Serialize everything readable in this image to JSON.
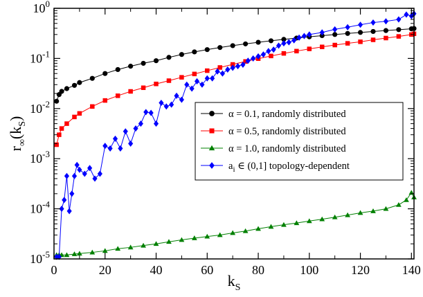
{
  "chart_data": {
    "type": "line",
    "xlabel": {
      "main": "k",
      "sub": "S"
    },
    "ylabel": {
      "main": "r",
      "sub1": "∞",
      "open": "(k",
      "sub2": "S",
      "close": ")"
    },
    "xlim": [
      0,
      141
    ],
    "ylim": [
      1e-05,
      1
    ],
    "yscale": "log",
    "grid": false,
    "legend_position": "center-right",
    "x_ticks": [
      "0",
      "20",
      "40",
      "60",
      "80",
      "100",
      "120",
      "140"
    ],
    "y_ticks": [
      {
        "base": "10",
        "exp": "-5"
      },
      {
        "base": "10",
        "exp": "-4"
      },
      {
        "base": "10",
        "exp": "-3"
      },
      {
        "base": "10",
        "exp": "-2"
      },
      {
        "base": "10",
        "exp": "-1"
      },
      {
        "base": "10",
        "exp": "0"
      }
    ],
    "series": [
      {
        "name": "α = 0.1, randomly distributed",
        "color": "#000000",
        "marker": "circle",
        "x": [
          1,
          2,
          3,
          5,
          8,
          10,
          15,
          20,
          25,
          30,
          35,
          40,
          45,
          50,
          55,
          60,
          65,
          70,
          75,
          80,
          85,
          90,
          95,
          100,
          105,
          110,
          115,
          120,
          125,
          130,
          135,
          140,
          141
        ],
        "y": [
          0.014,
          0.019,
          0.022,
          0.025,
          0.029,
          0.033,
          0.04,
          0.05,
          0.06,
          0.07,
          0.08,
          0.09,
          0.105,
          0.12,
          0.135,
          0.15,
          0.165,
          0.18,
          0.195,
          0.21,
          0.225,
          0.24,
          0.255,
          0.27,
          0.285,
          0.3,
          0.315,
          0.33,
          0.345,
          0.36,
          0.375,
          0.39,
          0.395
        ]
      },
      {
        "name": "α = 0.5, randomly distributed",
        "color": "#ff0000",
        "marker": "square",
        "x": [
          1,
          2,
          3,
          5,
          8,
          10,
          15,
          20,
          25,
          30,
          35,
          40,
          45,
          50,
          55,
          60,
          65,
          70,
          75,
          80,
          85,
          90,
          95,
          100,
          105,
          110,
          115,
          120,
          125,
          130,
          135,
          140,
          141
        ],
        "y": [
          0.0019,
          0.003,
          0.004,
          0.005,
          0.0068,
          0.008,
          0.011,
          0.0145,
          0.018,
          0.022,
          0.026,
          0.031,
          0.036,
          0.042,
          0.049,
          0.057,
          0.066,
          0.076,
          0.087,
          0.099,
          0.112,
          0.126,
          0.14,
          0.155,
          0.17,
          0.185,
          0.2,
          0.215,
          0.235,
          0.255,
          0.275,
          0.3,
          0.31
        ]
      },
      {
        "name": "α = 1.0, randomly distributed",
        "color": "#008000",
        "marker": "triangle",
        "x": [
          1,
          2,
          3,
          5,
          8,
          10,
          15,
          20,
          25,
          30,
          35,
          40,
          45,
          50,
          55,
          60,
          65,
          70,
          75,
          80,
          85,
          90,
          95,
          100,
          105,
          110,
          115,
          120,
          125,
          130,
          135,
          138,
          140,
          141
        ],
        "y": [
          1.2e-05,
          1.2e-05,
          1.2e-05,
          1.2e-05,
          1.25e-05,
          1.28e-05,
          1.35e-05,
          1.45e-05,
          1.6e-05,
          1.7e-05,
          1.85e-05,
          2e-05,
          2.2e-05,
          2.4e-05,
          2.6e-05,
          2.8e-05,
          3e-05,
          3.3e-05,
          3.6e-05,
          4e-05,
          4.4e-05,
          4.8e-05,
          5.2e-05,
          5.7e-05,
          6.2e-05,
          6.8e-05,
          7.5e-05,
          8.3e-05,
          9e-05,
          0.0001,
          0.00012,
          0.00015,
          0.00021,
          0.00017
        ]
      },
      {
        "name": "a",
        "name_sub": "i",
        "name_rest": "∈ (0,1] topology-dependent",
        "color": "#0000ff",
        "marker": "diamond",
        "x": [
          1,
          2,
          3,
          4,
          5,
          6,
          7,
          8,
          9,
          10,
          12,
          14,
          16,
          18,
          20,
          22,
          24,
          26,
          28,
          30,
          32,
          34,
          36,
          38,
          40,
          42,
          44,
          46,
          48,
          50,
          52,
          54,
          56,
          58,
          60,
          62,
          64,
          66,
          68,
          70,
          72,
          74,
          76,
          78,
          80,
          82,
          84,
          86,
          88,
          90,
          92,
          94,
          96,
          98,
          100,
          105,
          110,
          115,
          120,
          125,
          130,
          135,
          138,
          140,
          141
        ],
        "y": [
          1.1e-05,
          1.1e-05,
          0.0001,
          0.00015,
          0.00045,
          9e-05,
          0.0002,
          0.00045,
          0.00075,
          0.0006,
          0.0005,
          0.00065,
          0.0004,
          0.0005,
          0.0018,
          0.0016,
          0.0025,
          0.0016,
          0.0035,
          0.002,
          0.004,
          0.005,
          0.0085,
          0.0082,
          0.005,
          0.013,
          0.011,
          0.012,
          0.018,
          0.015,
          0.03,
          0.025,
          0.035,
          0.03,
          0.04,
          0.04,
          0.055,
          0.05,
          0.06,
          0.065,
          0.07,
          0.075,
          0.09,
          0.1,
          0.11,
          0.12,
          0.14,
          0.15,
          0.18,
          0.2,
          0.21,
          0.23,
          0.26,
          0.28,
          0.3,
          0.33,
          0.38,
          0.42,
          0.47,
          0.52,
          0.55,
          0.6,
          0.75,
          0.7,
          0.78
        ]
      }
    ]
  }
}
